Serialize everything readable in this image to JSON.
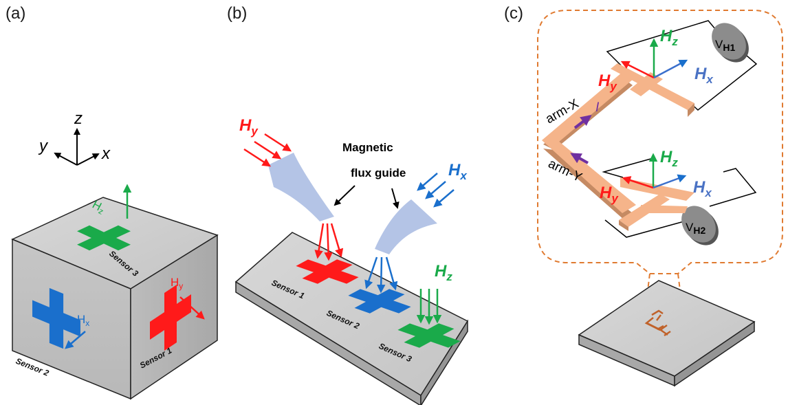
{
  "panels": {
    "a": "(a)",
    "b": "(b)",
    "c": "(c)"
  },
  "axes": {
    "z": "z",
    "y": "y",
    "x": "x"
  },
  "sensors": {
    "s1": "Sensor 1",
    "s2": "Sensor 2",
    "s3": "Sensor 3"
  },
  "fields": {
    "H": "H",
    "x": "x",
    "y": "y",
    "z": "z"
  },
  "guide_label": {
    "line1": "Magnetic",
    "line2": "flux guide"
  },
  "arms": {
    "x": "arm-X",
    "y": "arm-Y"
  },
  "current": "I",
  "voltmeters": {
    "v1_main": "V",
    "v1_sub": "H1",
    "v2_main": "V",
    "v2_sub": "H2"
  },
  "colors": {
    "red": "#ff1a1a",
    "green": "#1aaa4a",
    "blue": "#1a6fcc",
    "guide": "#b4c4e6",
    "hallbar": "#f5b48a",
    "purple": "#7030a0",
    "dash": "#e07a30"
  }
}
